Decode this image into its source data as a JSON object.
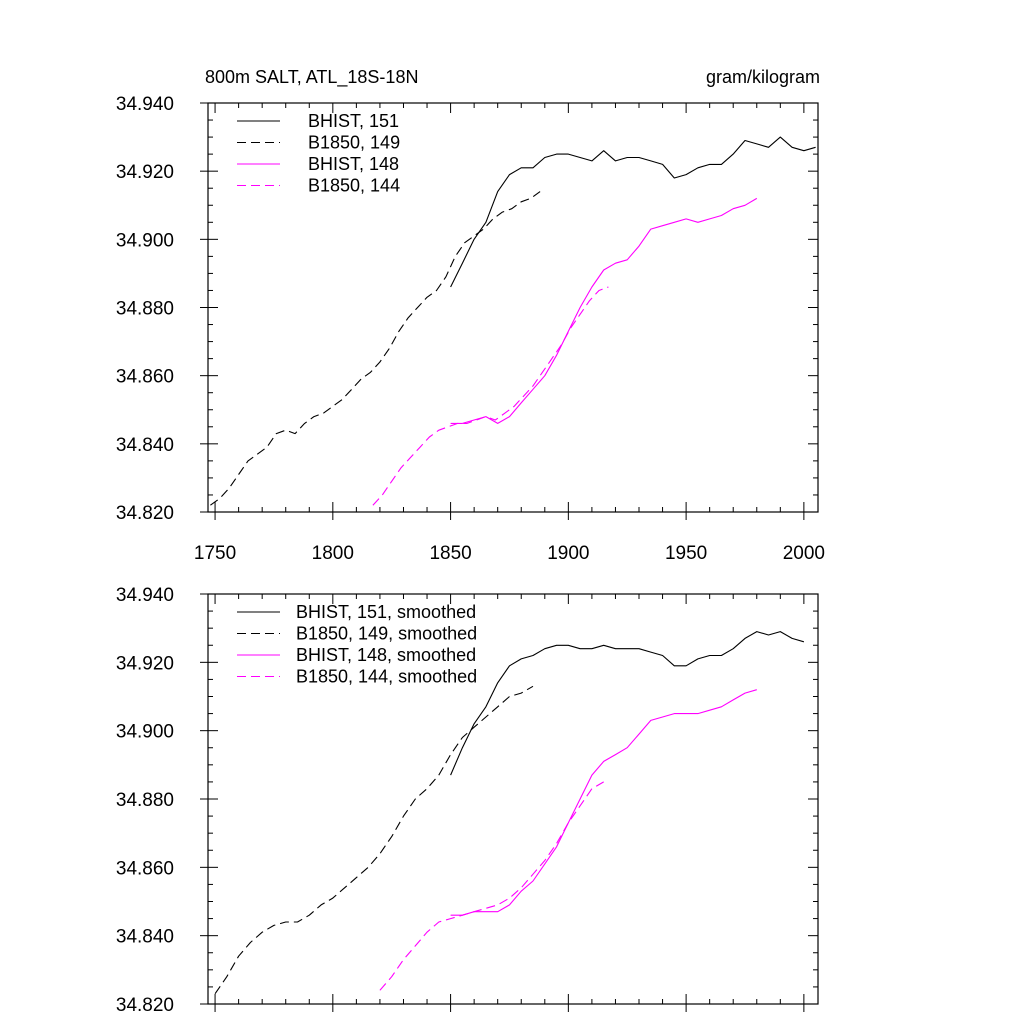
{
  "colors": {
    "black": "#000000",
    "magenta": "#ff00ff"
  },
  "chart_data": [
    {
      "type": "line",
      "title_left": "800m SALT, ATL_18S-18N",
      "title_right": "gram/kilogram",
      "xlim": [
        1747,
        2006
      ],
      "ylim": [
        34.82,
        34.94
      ],
      "xticks": [
        1750,
        1800,
        1850,
        1900,
        1950,
        2000
      ],
      "xtick_labels": [
        "1750",
        "1800",
        "1850",
        "1900",
        "1950",
        "2000"
      ],
      "yticks": [
        34.82,
        34.84,
        34.86,
        34.88,
        34.9,
        34.92,
        34.94
      ],
      "ytick_labels": [
        "34.820",
        "34.840",
        "34.860",
        "34.880",
        "34.900",
        "34.920",
        "34.940"
      ],
      "legend_position": "top-left",
      "series": [
        {
          "name": "BHIST, 151",
          "color": "#000000",
          "dash": "solid",
          "x": [
            1850,
            1855,
            1860,
            1865,
            1870,
            1875,
            1880,
            1885,
            1890,
            1895,
            1900,
            1905,
            1910,
            1915,
            1920,
            1925,
            1930,
            1935,
            1940,
            1945,
            1950,
            1955,
            1960,
            1965,
            1970,
            1975,
            1980,
            1985,
            1990,
            1995,
            2000,
            2005
          ],
          "y": [
            34.886,
            34.893,
            34.9,
            34.905,
            34.914,
            34.919,
            34.921,
            34.921,
            34.924,
            34.925,
            34.925,
            34.924,
            34.923,
            34.926,
            34.923,
            34.924,
            34.924,
            34.923,
            34.922,
            34.918,
            34.919,
            34.921,
            34.922,
            34.922,
            34.925,
            34.929,
            34.928,
            34.927,
            34.93,
            34.927,
            34.926,
            34.927
          ]
        },
        {
          "name": "B1850, 149",
          "color": "#000000",
          "dash": "dashed",
          "x": [
            1748,
            1752,
            1756,
            1760,
            1764,
            1768,
            1772,
            1776,
            1780,
            1784,
            1788,
            1792,
            1796,
            1800,
            1804,
            1808,
            1812,
            1816,
            1820,
            1824,
            1828,
            1832,
            1836,
            1840,
            1844,
            1848,
            1852,
            1856,
            1860,
            1864,
            1868,
            1872,
            1876,
            1880,
            1884,
            1888
          ],
          "y": [
            34.822,
            34.824,
            34.827,
            34.831,
            34.835,
            34.837,
            34.839,
            34.843,
            34.844,
            34.843,
            34.846,
            34.848,
            34.849,
            34.851,
            34.853,
            34.856,
            34.859,
            34.861,
            34.864,
            34.868,
            34.873,
            34.877,
            34.88,
            34.883,
            34.885,
            34.889,
            34.895,
            34.899,
            34.901,
            34.903,
            34.906,
            34.908,
            34.909,
            34.911,
            34.912,
            34.914
          ]
        },
        {
          "name": "BHIST, 148",
          "color": "#ff00ff",
          "dash": "solid",
          "x": [
            1850,
            1855,
            1860,
            1865,
            1870,
            1875,
            1880,
            1885,
            1890,
            1895,
            1900,
            1905,
            1910,
            1915,
            1920,
            1925,
            1930,
            1935,
            1940,
            1945,
            1950,
            1955,
            1960,
            1965,
            1970,
            1975,
            1980
          ],
          "y": [
            34.846,
            34.846,
            34.847,
            34.848,
            34.846,
            34.848,
            34.852,
            34.856,
            34.86,
            34.866,
            34.873,
            34.88,
            34.886,
            34.891,
            34.893,
            34.894,
            34.898,
            34.903,
            34.904,
            34.905,
            34.906,
            34.905,
            34.906,
            34.907,
            34.909,
            34.91,
            34.912
          ]
        },
        {
          "name": "B1850, 144",
          "color": "#ff00ff",
          "dash": "dashed",
          "x": [
            1817,
            1821,
            1825,
            1829,
            1833,
            1837,
            1841,
            1845,
            1849,
            1853,
            1857,
            1861,
            1865,
            1869,
            1873,
            1877,
            1881,
            1885,
            1889,
            1893,
            1897,
            1901,
            1905,
            1909,
            1913,
            1917
          ],
          "y": [
            34.822,
            34.825,
            34.829,
            34.833,
            34.836,
            34.839,
            34.842,
            34.844,
            34.845,
            34.846,
            34.846,
            34.847,
            34.848,
            34.847,
            34.849,
            34.851,
            34.854,
            34.857,
            34.861,
            34.865,
            34.869,
            34.874,
            34.878,
            34.882,
            34.885,
            34.886
          ]
        }
      ]
    },
    {
      "type": "line",
      "xlim": [
        1747,
        2006
      ],
      "ylim": [
        34.82,
        34.94
      ],
      "xticks": [
        1750,
        1800,
        1850,
        1900,
        1950,
        2000
      ],
      "yticks": [
        34.82,
        34.84,
        34.86,
        34.88,
        34.9,
        34.92,
        34.94
      ],
      "ytick_labels": [
        "34.820",
        "34.840",
        "34.860",
        "34.880",
        "34.900",
        "34.920",
        "34.940"
      ],
      "legend_position": "top-left",
      "series": [
        {
          "name": "BHIST, 151, smoothed",
          "color": "#000000",
          "dash": "solid",
          "x": [
            1850,
            1855,
            1860,
            1865,
            1870,
            1875,
            1880,
            1885,
            1890,
            1895,
            1900,
            1905,
            1910,
            1915,
            1920,
            1925,
            1930,
            1935,
            1940,
            1945,
            1950,
            1955,
            1960,
            1965,
            1970,
            1975,
            1980,
            1985,
            1990,
            1995,
            2000
          ],
          "y": [
            34.887,
            34.895,
            34.902,
            34.907,
            34.914,
            34.919,
            34.921,
            34.922,
            34.924,
            34.925,
            34.925,
            34.924,
            34.924,
            34.925,
            34.924,
            34.924,
            34.924,
            34.923,
            34.922,
            34.919,
            34.919,
            34.921,
            34.922,
            34.922,
            34.924,
            34.927,
            34.929,
            34.928,
            34.929,
            34.927,
            34.926
          ]
        },
        {
          "name": "B1850, 149, smoothed",
          "color": "#000000",
          "dash": "dashed",
          "x": [
            1750,
            1755,
            1760,
            1765,
            1770,
            1775,
            1780,
            1785,
            1790,
            1795,
            1800,
            1805,
            1810,
            1815,
            1820,
            1825,
            1830,
            1835,
            1840,
            1845,
            1850,
            1855,
            1860,
            1865,
            1870,
            1875,
            1880,
            1885
          ],
          "y": [
            34.823,
            34.828,
            34.834,
            34.838,
            34.841,
            34.843,
            34.844,
            34.844,
            34.846,
            34.849,
            34.851,
            34.854,
            34.857,
            34.86,
            34.864,
            34.869,
            34.875,
            34.88,
            34.883,
            34.887,
            34.893,
            34.898,
            34.901,
            34.904,
            34.907,
            34.91,
            34.911,
            34.913
          ]
        },
        {
          "name": "BHIST, 148, smoothed",
          "color": "#ff00ff",
          "dash": "solid",
          "x": [
            1850,
            1855,
            1860,
            1865,
            1870,
            1875,
            1880,
            1885,
            1890,
            1895,
            1900,
            1905,
            1910,
            1915,
            1920,
            1925,
            1930,
            1935,
            1940,
            1945,
            1950,
            1955,
            1960,
            1965,
            1970,
            1975,
            1980
          ],
          "y": [
            34.846,
            34.846,
            34.847,
            34.847,
            34.847,
            34.849,
            34.853,
            34.856,
            34.861,
            34.866,
            34.873,
            34.88,
            34.887,
            34.891,
            34.893,
            34.895,
            34.899,
            34.903,
            34.904,
            34.905,
            34.905,
            34.905,
            34.906,
            34.907,
            34.909,
            34.911,
            34.912
          ]
        },
        {
          "name": "B1850, 144, smoothed",
          "color": "#ff00ff",
          "dash": "dashed",
          "x": [
            1820,
            1825,
            1830,
            1835,
            1840,
            1845,
            1850,
            1855,
            1860,
            1865,
            1870,
            1875,
            1880,
            1885,
            1890,
            1895,
            1900,
            1905,
            1910,
            1915
          ],
          "y": [
            34.824,
            34.828,
            34.833,
            34.837,
            34.841,
            34.844,
            34.845,
            34.846,
            34.847,
            34.848,
            34.849,
            34.851,
            34.854,
            34.858,
            34.862,
            34.867,
            34.873,
            34.878,
            34.883,
            34.885
          ]
        }
      ]
    }
  ]
}
